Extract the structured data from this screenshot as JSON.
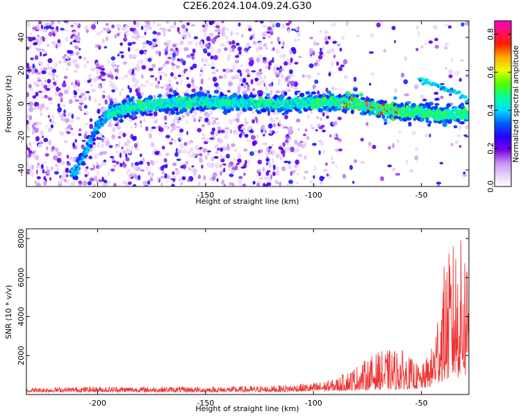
{
  "title": "C2E6.2024.104.09.24.G30",
  "chart_data": [
    {
      "type": "heatmap",
      "xlabel": "Height of straight line (km)",
      "ylabel": "Frequency (Hz)",
      "xlim": [
        -233,
        -28
      ],
      "ylim": [
        -50,
        50
      ],
      "xticks": [
        -200,
        -150,
        -100,
        -50
      ],
      "yticks": [
        -40,
        -20,
        0,
        20,
        40
      ],
      "colorbar": {
        "label": "Normalized spectral amplitude",
        "range": [
          0.0,
          0.87
        ],
        "ticks": [
          0.0,
          0.2,
          0.4,
          0.6,
          0.8
        ],
        "colormap": "rainbow (white-purple-blue-cyan-green-yellow-red-magenta)"
      },
      "ridge": {
        "description": "dominant frequency track",
        "x": [
          -211,
          -205,
          -200,
          -195,
          -185,
          -170,
          -150,
          -130,
          -110,
          -90,
          -80,
          -70,
          -60,
          -50,
          -40,
          -30
        ],
        "y": [
          -42,
          -28,
          -14,
          -6,
          -2,
          0,
          1,
          0,
          0,
          1,
          0,
          -3,
          -5,
          -5,
          -7,
          -6
        ]
      },
      "secondary_branch": {
        "x": [
          -51,
          -45,
          -38,
          -32,
          -28
        ],
        "y": [
          14,
          12,
          9,
          5,
          2
        ]
      }
    },
    {
      "type": "line",
      "xlabel": "Height of straight line (km)",
      "ylabel": "SNR (10 * v/v)",
      "xlim": [
        -233,
        -28
      ],
      "ylim": [
        0,
        8500
      ],
      "xticks": [
        -200,
        -150,
        -100,
        -50
      ],
      "yticks": [
        2000,
        4000,
        6000,
        8000
      ],
      "color": "#ee3333",
      "envelope": {
        "x": [
          -233,
          -200,
          -150,
          -120,
          -100,
          -90,
          -80,
          -70,
          -60,
          -50,
          -45,
          -40,
          -35,
          -30,
          -28
        ],
        "upper": [
          350,
          420,
          400,
          450,
          600,
          800,
          1500,
          2200,
          2400,
          1400,
          2500,
          6500,
          8000,
          8000,
          8400
        ],
        "lower": [
          120,
          130,
          120,
          130,
          150,
          180,
          220,
          250,
          250,
          300,
          400,
          700,
          800,
          900,
          900
        ]
      }
    }
  ]
}
